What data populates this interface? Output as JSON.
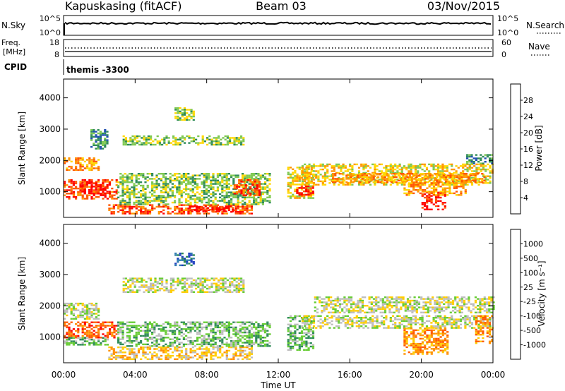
{
  "header": {
    "station": "Kapuskasing (fitACF)",
    "beam": "Beam 03",
    "date": "03/Nov/2015"
  },
  "noise_panel": {
    "left_label": "N.Sky",
    "right_label": "N.Search",
    "left_ticks": [
      "10^5",
      "10^0"
    ],
    "right_ticks": [
      "10^5",
      "10^0"
    ]
  },
  "freq_panel": {
    "left_label_line1": "Freq.",
    "left_label_line2": "[MHz]",
    "left_ticks": [
      "18",
      "8"
    ],
    "right_ticks": [
      "60",
      "0"
    ],
    "right_label": "Nave"
  },
  "cpid": {
    "label": "CPID",
    "value": "themis -3300"
  },
  "chart_data": [
    {
      "type": "heatmap",
      "name": "power",
      "ylabel": "Slant Range [km]",
      "ylim": [
        180,
        4600
      ],
      "yticks": [
        "1000",
        "2000",
        "3000",
        "4000"
      ],
      "xlabel": "Time UT",
      "xlim_hours": [
        0,
        24
      ],
      "xticks": [
        "00:00",
        "04:00",
        "08:00",
        "12:00",
        "16:00",
        "20:00",
        "00:00"
      ],
      "colorbar": {
        "label": "Power [dB]",
        "ticks": [
          "4",
          "8",
          "12",
          "16",
          "20",
          "24",
          "28"
        ],
        "colors": [
          "#0000ff",
          "#2050b0",
          "#2e8b57",
          "#7ec850",
          "#ffd700",
          "#ff9500",
          "#ff5500",
          "#ff0000"
        ]
      },
      "regions": [
        {
          "t0": 0.0,
          "t1": 2.0,
          "r0": 1700,
          "r1": 2100,
          "level": 5
        },
        {
          "t0": 0.0,
          "t1": 3.0,
          "r0": 800,
          "r1": 1400,
          "level": 6
        },
        {
          "t0": 1.0,
          "t1": 2.6,
          "r0": 950,
          "r1": 1300,
          "level": 7
        },
        {
          "t0": 1.5,
          "t1": 2.5,
          "r0": 2400,
          "r1": 3000,
          "level": 2
        },
        {
          "t0": 3.3,
          "t1": 10.0,
          "r0": 2500,
          "r1": 2800,
          "level": 3
        },
        {
          "t0": 6.2,
          "t1": 7.3,
          "r0": 3300,
          "r1": 3700,
          "level": 3
        },
        {
          "t0": 2.5,
          "t1": 10.5,
          "r0": 300,
          "r1": 600,
          "level": 6
        },
        {
          "t0": 7.0,
          "t1": 9.5,
          "r0": 380,
          "r1": 560,
          "level": 7
        },
        {
          "t0": 3.0,
          "t1": 11.5,
          "r0": 600,
          "r1": 1600,
          "level": 3
        },
        {
          "t0": 9.5,
          "t1": 11.0,
          "r0": 900,
          "r1": 1400,
          "level": 6
        },
        {
          "t0": 12.5,
          "t1": 14.0,
          "r0": 800,
          "r1": 1800,
          "level": 4
        },
        {
          "t0": 13.0,
          "t1": 14.0,
          "r0": 900,
          "r1": 1200,
          "level": 7
        },
        {
          "t0": 13.3,
          "t1": 24.0,
          "r0": 1200,
          "r1": 1900,
          "level": 4
        },
        {
          "t0": 15.0,
          "t1": 23.5,
          "r0": 1300,
          "r1": 1600,
          "level": 5
        },
        {
          "t0": 20.0,
          "t1": 21.3,
          "r0": 450,
          "r1": 1000,
          "level": 7
        },
        {
          "t0": 19.0,
          "t1": 22.5,
          "r0": 900,
          "r1": 1300,
          "level": 5
        },
        {
          "t0": 22.5,
          "t1": 24.0,
          "r0": 1900,
          "r1": 2200,
          "level": 2
        }
      ]
    },
    {
      "type": "heatmap",
      "name": "velocity",
      "ylabel": "Slant Range [km]",
      "ylim": [
        180,
        4600
      ],
      "yticks": [
        "1000",
        "2000",
        "3000",
        "4000"
      ],
      "xlabel": "Time UT",
      "xlim_hours": [
        0,
        24
      ],
      "xticks": [
        "00:00",
        "04:00",
        "08:00",
        "12:00",
        "16:00",
        "20:00",
        "00:00"
      ],
      "colorbar": {
        "label": "Velocity [m s⁻¹]",
        "ticks": [
          "1000",
          "500",
          "100",
          "25",
          "-25",
          "-100",
          "-500",
          "-1000"
        ],
        "colors": [
          "#1f3fbf",
          "#2e7db0",
          "#2e8b57",
          "#66cc33",
          "#bdbdbd",
          "#ffcc00",
          "#ff9000",
          "#ff5a00",
          "#ff0000"
        ]
      },
      "regions": [
        {
          "t0": 0.0,
          "t1": 2.0,
          "r0": 1600,
          "r1": 2100,
          "level": 4
        },
        {
          "t0": 0.0,
          "t1": 3.0,
          "r0": 1000,
          "r1": 1500,
          "level": 7
        },
        {
          "t0": 0.0,
          "t1": 2.5,
          "r0": 750,
          "r1": 1000,
          "level": 3
        },
        {
          "t0": 3.3,
          "t1": 10.0,
          "r0": 2450,
          "r1": 2900,
          "level": 4
        },
        {
          "t0": 6.2,
          "t1": 7.3,
          "r0": 3300,
          "r1": 3700,
          "level": 1
        },
        {
          "t0": 2.5,
          "t1": 10.5,
          "r0": 300,
          "r1": 700,
          "level": 5
        },
        {
          "t0": 3.0,
          "t1": 11.5,
          "r0": 700,
          "r1": 1500,
          "level": 3
        },
        {
          "t0": 12.5,
          "t1": 14.0,
          "r0": 600,
          "r1": 1700,
          "level": 3
        },
        {
          "t0": 13.3,
          "t1": 24.0,
          "r0": 1300,
          "r1": 1700,
          "level": 4
        },
        {
          "t0": 14.0,
          "t1": 24.0,
          "r0": 1800,
          "r1": 2300,
          "level": 4
        },
        {
          "t0": 19.0,
          "t1": 21.5,
          "r0": 450,
          "r1": 1300,
          "level": 6
        },
        {
          "t0": 23.0,
          "t1": 24.0,
          "r0": 800,
          "r1": 1700,
          "level": 6
        }
      ]
    }
  ]
}
